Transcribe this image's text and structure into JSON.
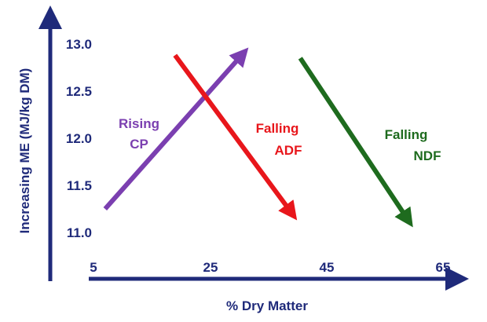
{
  "chart_data": {
    "type": "line",
    "title": "",
    "xlabel": "% Dry Matter",
    "ylabel": "Increasing ME (MJ/kg DM)",
    "x_ticks": [
      "5",
      "25",
      "45",
      "65"
    ],
    "y_ticks": [
      "13.0",
      "12.5",
      "12.0",
      "11.5",
      "11.0"
    ],
    "xlim": [
      5,
      65
    ],
    "ylim": [
      10.8,
      13.0
    ],
    "grid": false,
    "legend": "none",
    "axis_color": "#1f2a7a",
    "series": [
      {
        "label_lines": [
          "Rising",
          "CP"
        ],
        "color": "#7b3fb0",
        "points": [
          {
            "x": 7,
            "y": 11.25
          },
          {
            "x": 30,
            "y": 12.85
          }
        ]
      },
      {
        "label_lines": [
          "Falling",
          "ADF"
        ],
        "color": "#e8161b",
        "points": [
          {
            "x": 19,
            "y": 12.88
          },
          {
            "x": 38.5,
            "y": 11.25
          }
        ]
      },
      {
        "label_lines": [
          "Falling",
          "NDF"
        ],
        "color": "#1e6b1e",
        "points": [
          {
            "x": 40.5,
            "y": 12.85
          },
          {
            "x": 58.5,
            "y": 11.18
          }
        ]
      }
    ]
  }
}
